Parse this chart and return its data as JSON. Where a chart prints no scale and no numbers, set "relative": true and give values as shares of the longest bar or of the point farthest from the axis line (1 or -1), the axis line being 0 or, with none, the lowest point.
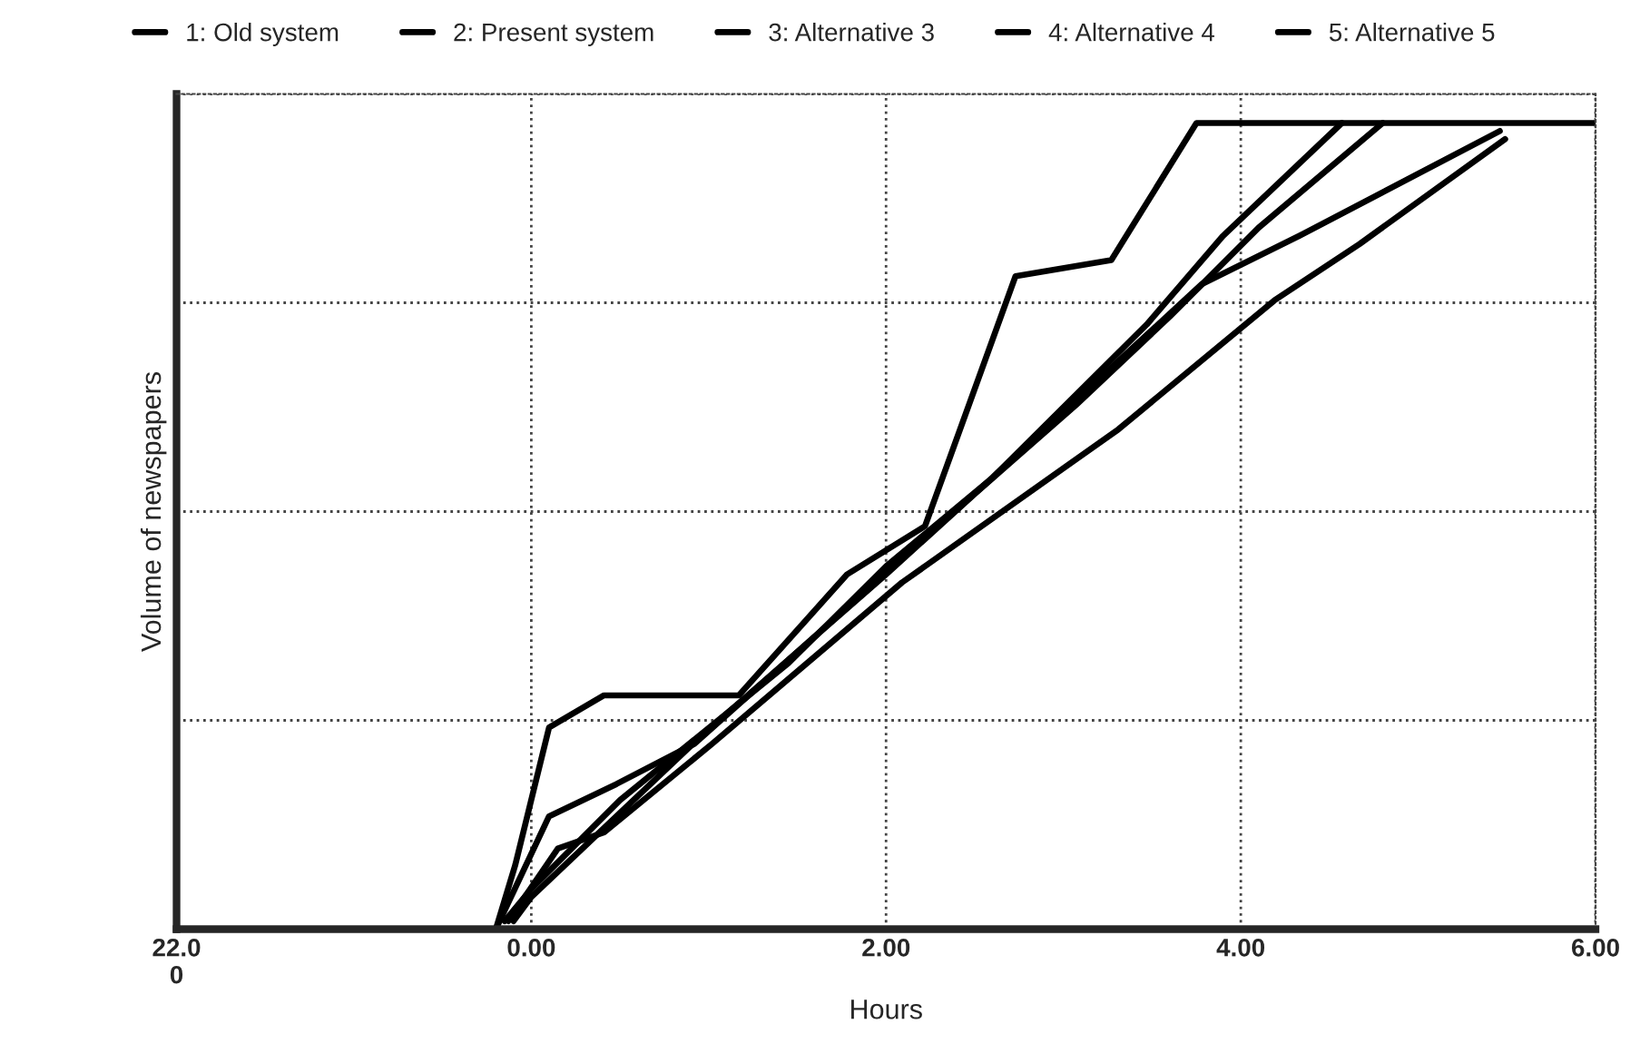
{
  "chart_data": {
    "type": "line",
    "xlabel": "Hours",
    "ylabel": "Volume of newspapers",
    "relative": true,
    "xlim": [
      -2,
      6
    ],
    "xticks": [
      {
        "value": -2,
        "label": "22.0\n0"
      },
      {
        "value": 0,
        "label": "0.00"
      },
      {
        "value": 2,
        "label": "2.00"
      },
      {
        "value": 4,
        "label": "4.00"
      },
      {
        "value": 6,
        "label": "6.00"
      }
    ],
    "tick_labels": "x",
    "grid": true,
    "legend": "top",
    "line_style": "solid",
    "series": [
      {
        "name": "1: Old system",
        "color": "#000000",
        "x": [
          -0.13,
          0.15,
          0.41,
          1.02,
          2.09,
          3.31,
          4.19,
          4.67,
          5.49
        ],
        "values": [
          0.01,
          0.1,
          0.12,
          0.23,
          0.43,
          0.62,
          0.78,
          0.85,
          0.98
        ]
      },
      {
        "name": "2: Present system",
        "color": "#000000",
        "x": [
          -0.2,
          0.1,
          0.48,
          0.92,
          2.6,
          3.04,
          3.78,
          4.33,
          5.46
        ],
        "values": [
          0,
          0.14,
          0.18,
          0.23,
          0.56,
          0.65,
          0.8,
          0.86,
          0.99
        ]
      },
      {
        "name": "3: Alternative 3",
        "color": "#000000",
        "x": [
          -0.1,
          0,
          0.96,
          2.0,
          2.5,
          3.07,
          3.6,
          4.1,
          4.8
        ],
        "values": [
          0.01,
          0.04,
          0.24,
          0.44,
          0.54,
          0.65,
          0.76,
          0.87,
          1
        ]
      },
      {
        "name": "4: Alternative 4",
        "color": "#000000",
        "x": [
          -0.15,
          0,
          0.5,
          1.45,
          2.0,
          2.6,
          3.47,
          3.9,
          4.57
        ],
        "values": [
          0.01,
          0.05,
          0.16,
          0.33,
          0.45,
          0.56,
          0.75,
          0.86,
          1
        ]
      },
      {
        "name": "5: Alternative 5",
        "color": "#000000",
        "x": [
          -2,
          -0.2,
          -0.09,
          0.1,
          0.41,
          1.17,
          1.78,
          2.22,
          2.73,
          3.27,
          3.75,
          6
        ],
        "values": [
          0,
          0,
          0.08,
          0.25,
          0.29,
          0.29,
          0.44,
          0.5,
          0.81,
          0.83,
          1,
          1
        ]
      }
    ]
  }
}
